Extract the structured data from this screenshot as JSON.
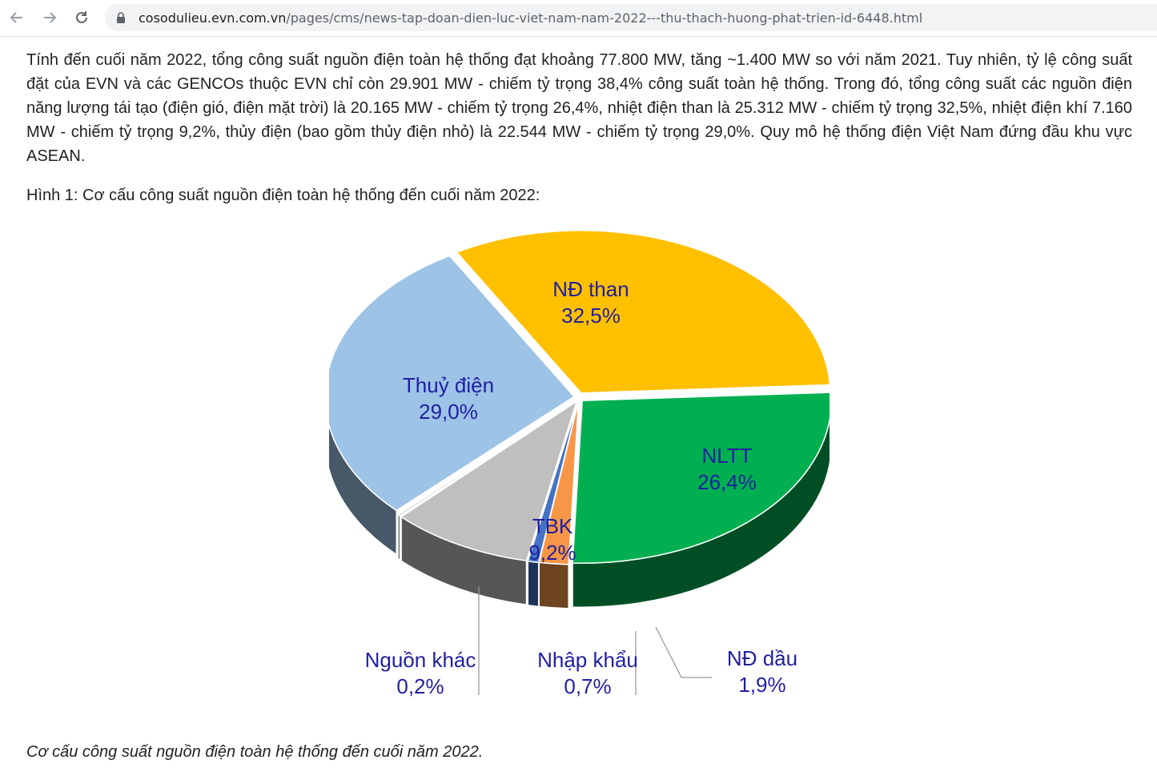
{
  "browser": {
    "url_host": "cosodulieu.evn.com.vn",
    "url_path": "/pages/cms/news-tap-doan-dien-luc-viet-nam-nam-2022---thu-thach-huong-phat-trien-id-6448.html",
    "back_icon": "arrow-left-icon",
    "forward_icon": "arrow-right-icon",
    "reload_icon": "reload-icon",
    "lock_icon": "lock-icon"
  },
  "article": {
    "paragraph": "Tính đến cuối năm 2022, tổng công suất nguồn điện toàn hệ thống đạt khoảng 77.800 MW, tăng ~1.400 MW so với năm 2021. Tuy nhiên, tỷ lệ công suất đặt của EVN và các GENCOs thuộc EVN chỉ còn 29.901 MW - chiếm tỷ trọng 38,4% công suất toàn hệ thống. Trong đó, tổng công suất các nguồn điện năng lượng tái tạo (điện gió, điện mặt trời) là 20.165 MW - chiếm tỷ trọng 26,4%, nhiệt điện than là 25.312 MW - chiếm tỷ trọng 32,5%, nhiệt điện khí 7.160 MW - chiếm tỷ trọng 9,2%, thủy điện (bao gồm thủy điện nhỏ) là 22.544 MW - chiếm tỷ trọng 29,0%. Quy mô hệ thống điện Việt Nam đứng đầu khu vực ASEAN.",
    "figure_caption_top": "Hình 1: Cơ cấu công suất nguồn điện toàn hệ thống đến cuối năm 2022:",
    "figure_caption_bottom": "Cơ cấu công suất nguồn điện toàn hệ thống đến cuối năm 2022."
  },
  "chart_data": {
    "type": "pie",
    "title": "",
    "slices": [
      {
        "label": "NĐ than",
        "value": 32.5,
        "value_label": "32,5%",
        "color": "#FFC000"
      },
      {
        "label": "NLTT",
        "value": 26.4,
        "value_label": "26,4%",
        "color": "#00B050"
      },
      {
        "label": "NĐ dầu",
        "value": 1.9,
        "value_label": "1,9%",
        "color": "#F79646"
      },
      {
        "label": "Nhập khẩu",
        "value": 0.7,
        "value_label": "0,7%",
        "color": "#4472C4"
      },
      {
        "label": "TBK",
        "value": 9.2,
        "value_label": "9,2%",
        "color": "#BFBFBF"
      },
      {
        "label": "Nguồn khác",
        "value": 0.2,
        "value_label": "0,2%",
        "color": "#DDDDDD"
      },
      {
        "label": "Thuỷ điện",
        "value": 29.0,
        "value_label": "29,0%",
        "color": "#9DC3E6"
      }
    ],
    "label_color": "#1F1FA0",
    "style": "3d-exploded-pie"
  }
}
